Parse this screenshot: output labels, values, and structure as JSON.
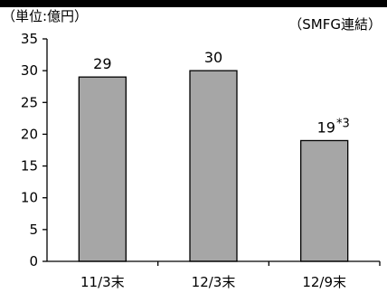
{
  "unit_label": "（単位:億円）",
  "source_label": "（SMFG連結）",
  "colors": {
    "bar": "#a6a6a6",
    "bar_edge": "#000000",
    "axis": "#000000",
    "top_band": "#000000"
  },
  "chart_data": {
    "type": "bar",
    "title": "",
    "xlabel": "",
    "ylabel": "",
    "categories": [
      "11/3末",
      "12/3末",
      "12/9末"
    ],
    "values": [
      29,
      30,
      19
    ],
    "value_labels": [
      "29",
      "30",
      "19"
    ],
    "value_superscripts": [
      "",
      "",
      "*3"
    ],
    "ylim": [
      0,
      35
    ],
    "yticks": [
      0,
      5,
      10,
      15,
      20,
      25,
      30,
      35
    ],
    "grid": false,
    "legend": "none"
  }
}
